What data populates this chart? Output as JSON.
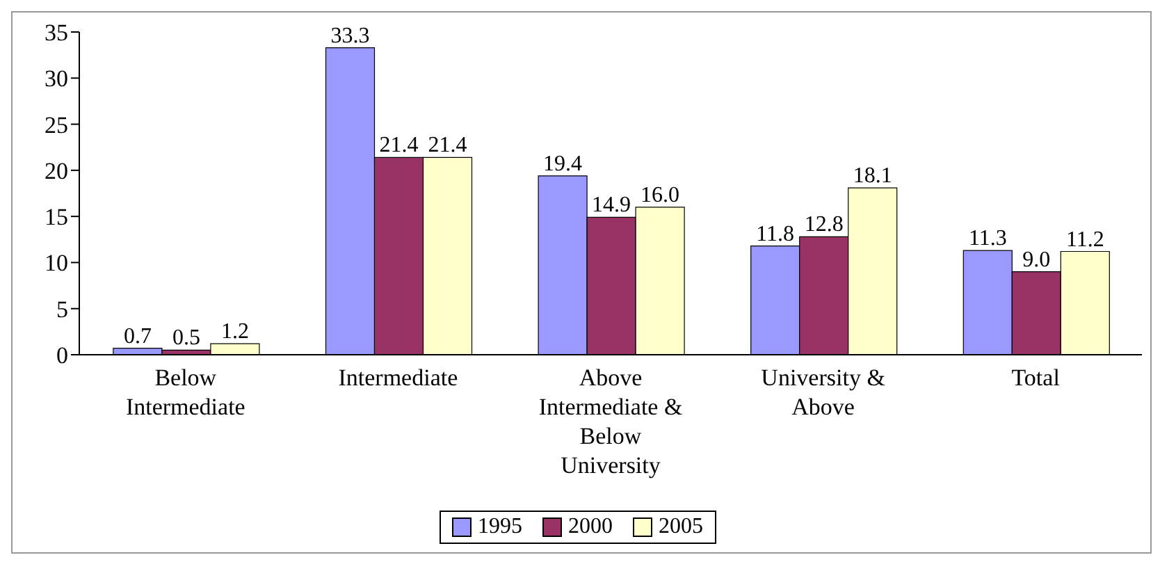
{
  "chart_data": {
    "type": "bar",
    "categories": [
      "Below Intermediate",
      "Intermediate",
      "Above Intermediate & Below University",
      "University & Above",
      "Total"
    ],
    "series": [
      {
        "name": "1995",
        "color": "#9999ff",
        "values": [
          0.7,
          33.3,
          19.4,
          11.8,
          11.3
        ],
        "value_labels": [
          "0.7",
          "33.3",
          "19.4",
          "11.8",
          "11.3"
        ]
      },
      {
        "name": "2000",
        "color": "#993366",
        "values": [
          0.5,
          21.4,
          14.9,
          12.8,
          9.0
        ],
        "value_labels": [
          "0.5",
          "21.4",
          "14.9",
          "12.8",
          "9.0"
        ]
      },
      {
        "name": "2005",
        "color": "#ffffcc",
        "values": [
          1.2,
          21.4,
          16.0,
          18.1,
          11.2
        ],
        "value_labels": [
          "1.2",
          "21.4",
          "16.0",
          "18.1",
          "11.2"
        ]
      }
    ],
    "ylim": [
      0,
      35
    ],
    "yticks": [
      0,
      5,
      10,
      15,
      20,
      25,
      30,
      35
    ],
    "legend": "bottom"
  }
}
